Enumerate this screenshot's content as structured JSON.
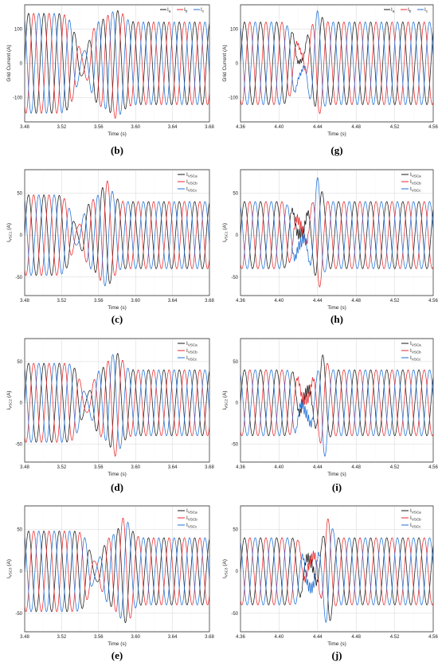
{
  "colors": {
    "a": "#1a1a1a",
    "b": "#e8272a",
    "c": "#1f6fd6"
  },
  "chart_data": [
    {
      "id": "b",
      "type": "line",
      "label": "(b)",
      "xlabel": "Time (s)",
      "ylabel": "Grid Current (A)",
      "xlim": [
        3.48,
        3.68
      ],
      "ylim": [
        -170,
        170
      ],
      "xticks": [
        3.48,
        3.52,
        3.56,
        3.6,
        3.64,
        3.68
      ],
      "yticks": [
        -100,
        0,
        100
      ],
      "legend": "top-right",
      "series": [
        {
          "name": "I",
          "sub": "a"
        },
        {
          "name": "I",
          "sub": "b"
        },
        {
          "name": "I",
          "sub": "c"
        }
      ],
      "freq_hz": 60,
      "amp_before": 145,
      "amp_after": 120,
      "event": [
        3.535,
        3.575
      ],
      "peak_event": 160,
      "mode": "smooth"
    },
    {
      "id": "g",
      "type": "line",
      "label": "(g)",
      "xlabel": "Time (s)",
      "ylabel": "Grid Current (A)",
      "xlim": [
        4.36,
        4.56
      ],
      "ylim": [
        -170,
        170
      ],
      "xticks": [
        4.36,
        4.4,
        4.44,
        4.48,
        4.52,
        4.56
      ],
      "yticks": [
        -100,
        0,
        100
      ],
      "legend": "top-right",
      "series": [
        {
          "name": "I",
          "sub": "a"
        },
        {
          "name": "I",
          "sub": "b"
        },
        {
          "name": "I",
          "sub": "c"
        }
      ],
      "freq_hz": 60,
      "amp_before": 120,
      "amp_after": 120,
      "event": [
        4.415,
        4.44
      ],
      "peak_event": 160,
      "mode": "fault"
    },
    {
      "id": "c",
      "type": "line",
      "label": "(c)",
      "xlabel": "Time (s)",
      "ylabel": "I",
      "ylabel_sub": "VSC1",
      "ylabel_unit": "(A)",
      "xlim": [
        3.48,
        3.68
      ],
      "ylim": [
        -72,
        78
      ],
      "xticks": [
        3.48,
        3.52,
        3.56,
        3.6,
        3.64,
        3.68
      ],
      "yticks": [
        -50,
        0,
        50
      ],
      "legend": "top-right",
      "series": [
        {
          "name": "I",
          "sub": "VSCa"
        },
        {
          "name": "I",
          "sub": "VSCb"
        },
        {
          "name": "I",
          "sub": "VSCc"
        }
      ],
      "freq_hz": 60,
      "amp_before": 48,
      "amp_after": 40,
      "event": [
        3.53,
        3.565
      ],
      "peak_event": 65,
      "mode": "smooth"
    },
    {
      "id": "h",
      "type": "line",
      "label": "(h)",
      "xlabel": "Time (s)",
      "ylabel": "I",
      "ylabel_sub": "VSC1",
      "ylabel_unit": "(A)",
      "xlim": [
        4.36,
        4.56
      ],
      "ylim": [
        -72,
        78
      ],
      "xticks": [
        4.36,
        4.4,
        4.44,
        4.48,
        4.52,
        4.56
      ],
      "yticks": [
        -50,
        0,
        50
      ],
      "legend": "top-right",
      "series": [
        {
          "name": "I",
          "sub": "VSCa"
        },
        {
          "name": "I",
          "sub": "VSCb"
        },
        {
          "name": "I",
          "sub": "VSCc"
        }
      ],
      "freq_hz": 60,
      "amp_before": 40,
      "amp_after": 40,
      "event": [
        4.415,
        4.44
      ],
      "peak_event": 73,
      "mode": "fault"
    },
    {
      "id": "d",
      "type": "line",
      "label": "(d)",
      "xlabel": "Time (s)",
      "ylabel": "I",
      "ylabel_sub": "VSC2",
      "ylabel_unit": "(A)",
      "xlim": [
        3.48,
        3.68
      ],
      "ylim": [
        -72,
        78
      ],
      "xticks": [
        3.48,
        3.52,
        3.56,
        3.6,
        3.64,
        3.68
      ],
      "yticks": [
        -50,
        0,
        50
      ],
      "legend": "top-right",
      "series": [
        {
          "name": "I",
          "sub": "VSCa"
        },
        {
          "name": "I",
          "sub": "VSCb"
        },
        {
          "name": "I",
          "sub": "VSCc"
        }
      ],
      "freq_hz": 60,
      "amp_before": 48,
      "amp_after": 40,
      "event": [
        3.54,
        3.575
      ],
      "peak_event": 65,
      "mode": "smooth"
    },
    {
      "id": "i",
      "type": "line",
      "label": "(i)",
      "xlabel": "Time (s)",
      "ylabel": "I",
      "ylabel_sub": "VSC2",
      "ylabel_unit": "(A)",
      "xlim": [
        4.36,
        4.56
      ],
      "ylim": [
        -72,
        78
      ],
      "xticks": [
        4.36,
        4.4,
        4.44,
        4.48,
        4.52,
        4.56
      ],
      "yticks": [
        -50,
        0,
        50
      ],
      "legend": "top-right",
      "series": [
        {
          "name": "I",
          "sub": "VSCa"
        },
        {
          "name": "I",
          "sub": "VSCb"
        },
        {
          "name": "I",
          "sub": "VSCc"
        }
      ],
      "freq_hz": 60,
      "amp_before": 40,
      "amp_after": 40,
      "event": [
        4.42,
        4.445
      ],
      "peak_event": 68,
      "mode": "fault"
    },
    {
      "id": "e",
      "type": "line",
      "label": "(e)",
      "xlabel": "Time (s)",
      "ylabel": "I",
      "ylabel_sub": "VSC3",
      "ylabel_unit": "(A)",
      "xlim": [
        3.48,
        3.68
      ],
      "ylim": [
        -72,
        78
      ],
      "xticks": [
        3.48,
        3.52,
        3.56,
        3.6,
        3.64,
        3.68
      ],
      "yticks": [
        -50,
        0,
        50
      ],
      "legend": "top-right",
      "series": [
        {
          "name": "I",
          "sub": "VSCa"
        },
        {
          "name": "I",
          "sub": "VSCb"
        },
        {
          "name": "I",
          "sub": "VSCc"
        }
      ],
      "freq_hz": 60,
      "amp_before": 48,
      "amp_after": 40,
      "event": [
        3.55,
        3.585
      ],
      "peak_event": 65,
      "mode": "smooth"
    },
    {
      "id": "j",
      "type": "line",
      "label": "(j)",
      "xlabel": "Time (s)",
      "ylabel": "I",
      "ylabel_sub": "VSC3",
      "ylabel_unit": "(A)",
      "xlim": [
        4.36,
        4.56
      ],
      "ylim": [
        -72,
        78
      ],
      "xticks": [
        4.36,
        4.4,
        4.44,
        4.48,
        4.52,
        4.56
      ],
      "yticks": [
        -50,
        0,
        50
      ],
      "legend": "top-right",
      "series": [
        {
          "name": "I",
          "sub": "VSCa"
        },
        {
          "name": "I",
          "sub": "VSCb"
        },
        {
          "name": "I",
          "sub": "VSCc"
        }
      ],
      "freq_hz": 60,
      "amp_before": 40,
      "amp_after": 40,
      "event": [
        4.425,
        4.45
      ],
      "peak_event": 73,
      "mode": "fault"
    }
  ]
}
